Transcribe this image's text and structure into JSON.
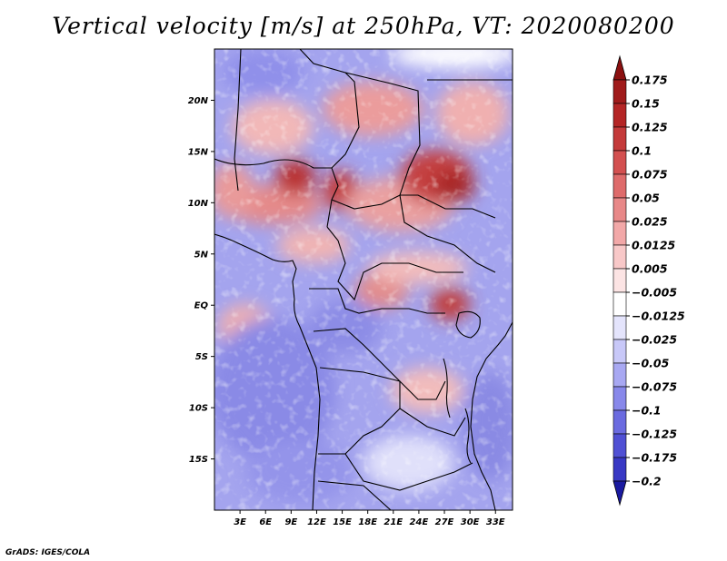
{
  "title": "Vertical velocity [m/s] at 250hPa, VT: 2020080200",
  "credit": "GrADS: IGES/COLA",
  "map": {
    "variable": "Vertical velocity",
    "units": "m/s",
    "level": "250hPa",
    "valid_time": "2020080200",
    "lat_range": [
      -20,
      25
    ],
    "lon_range": [
      0,
      35
    ],
    "lat_ticks": [
      {
        "value": 20,
        "label": "20N"
      },
      {
        "value": 15,
        "label": "15N"
      },
      {
        "value": 10,
        "label": "10N"
      },
      {
        "value": 5,
        "label": "5N"
      },
      {
        "value": 0,
        "label": "EQ"
      },
      {
        "value": -5,
        "label": "5S"
      },
      {
        "value": -10,
        "label": "10S"
      },
      {
        "value": -15,
        "label": "15S"
      }
    ],
    "lon_ticks": [
      {
        "value": 3,
        "label": "3E"
      },
      {
        "value": 6,
        "label": "6E"
      },
      {
        "value": 9,
        "label": "9E"
      },
      {
        "value": 12,
        "label": "12E"
      },
      {
        "value": 15,
        "label": "15E"
      },
      {
        "value": 18,
        "label": "18E"
      },
      {
        "value": 21,
        "label": "21E"
      },
      {
        "value": 24,
        "label": "24E"
      },
      {
        "value": 27,
        "label": "27E"
      },
      {
        "value": 30,
        "label": "30E"
      },
      {
        "value": 33,
        "label": "33E"
      }
    ]
  },
  "colorbar": {
    "levels": [
      {
        "label": "0.175",
        "color": "#a01b1b"
      },
      {
        "label": "0.15",
        "color": "#b42525"
      },
      {
        "label": "0.125",
        "color": "#c43a3a"
      },
      {
        "label": "0.1",
        "color": "#d35050"
      },
      {
        "label": "0.075",
        "color": "#de6b6b"
      },
      {
        "label": "0.05",
        "color": "#e88888"
      },
      {
        "label": "0.025",
        "color": "#f2a8a8"
      },
      {
        "label": "0.0125",
        "color": "#f8c8c8"
      },
      {
        "label": "0.005",
        "color": "#fce4e4"
      },
      {
        "label": "−0.005",
        "color": "#ffffff"
      },
      {
        "label": "−0.0125",
        "color": "#e4e4fc"
      },
      {
        "label": "−0.025",
        "color": "#c8c8f8"
      },
      {
        "label": "−0.05",
        "color": "#a8a8f2"
      },
      {
        "label": "−0.075",
        "color": "#8888ea"
      },
      {
        "label": "−0.1",
        "color": "#6b6be0"
      },
      {
        "label": "−0.125",
        "color": "#5050d4"
      },
      {
        "label": "−0.175",
        "color": "#3838c4"
      },
      {
        "label": "−0.2",
        "color": "#2222b0"
      }
    ],
    "top_color": "#8b1010",
    "bottom_color": "#1a1aa0"
  }
}
